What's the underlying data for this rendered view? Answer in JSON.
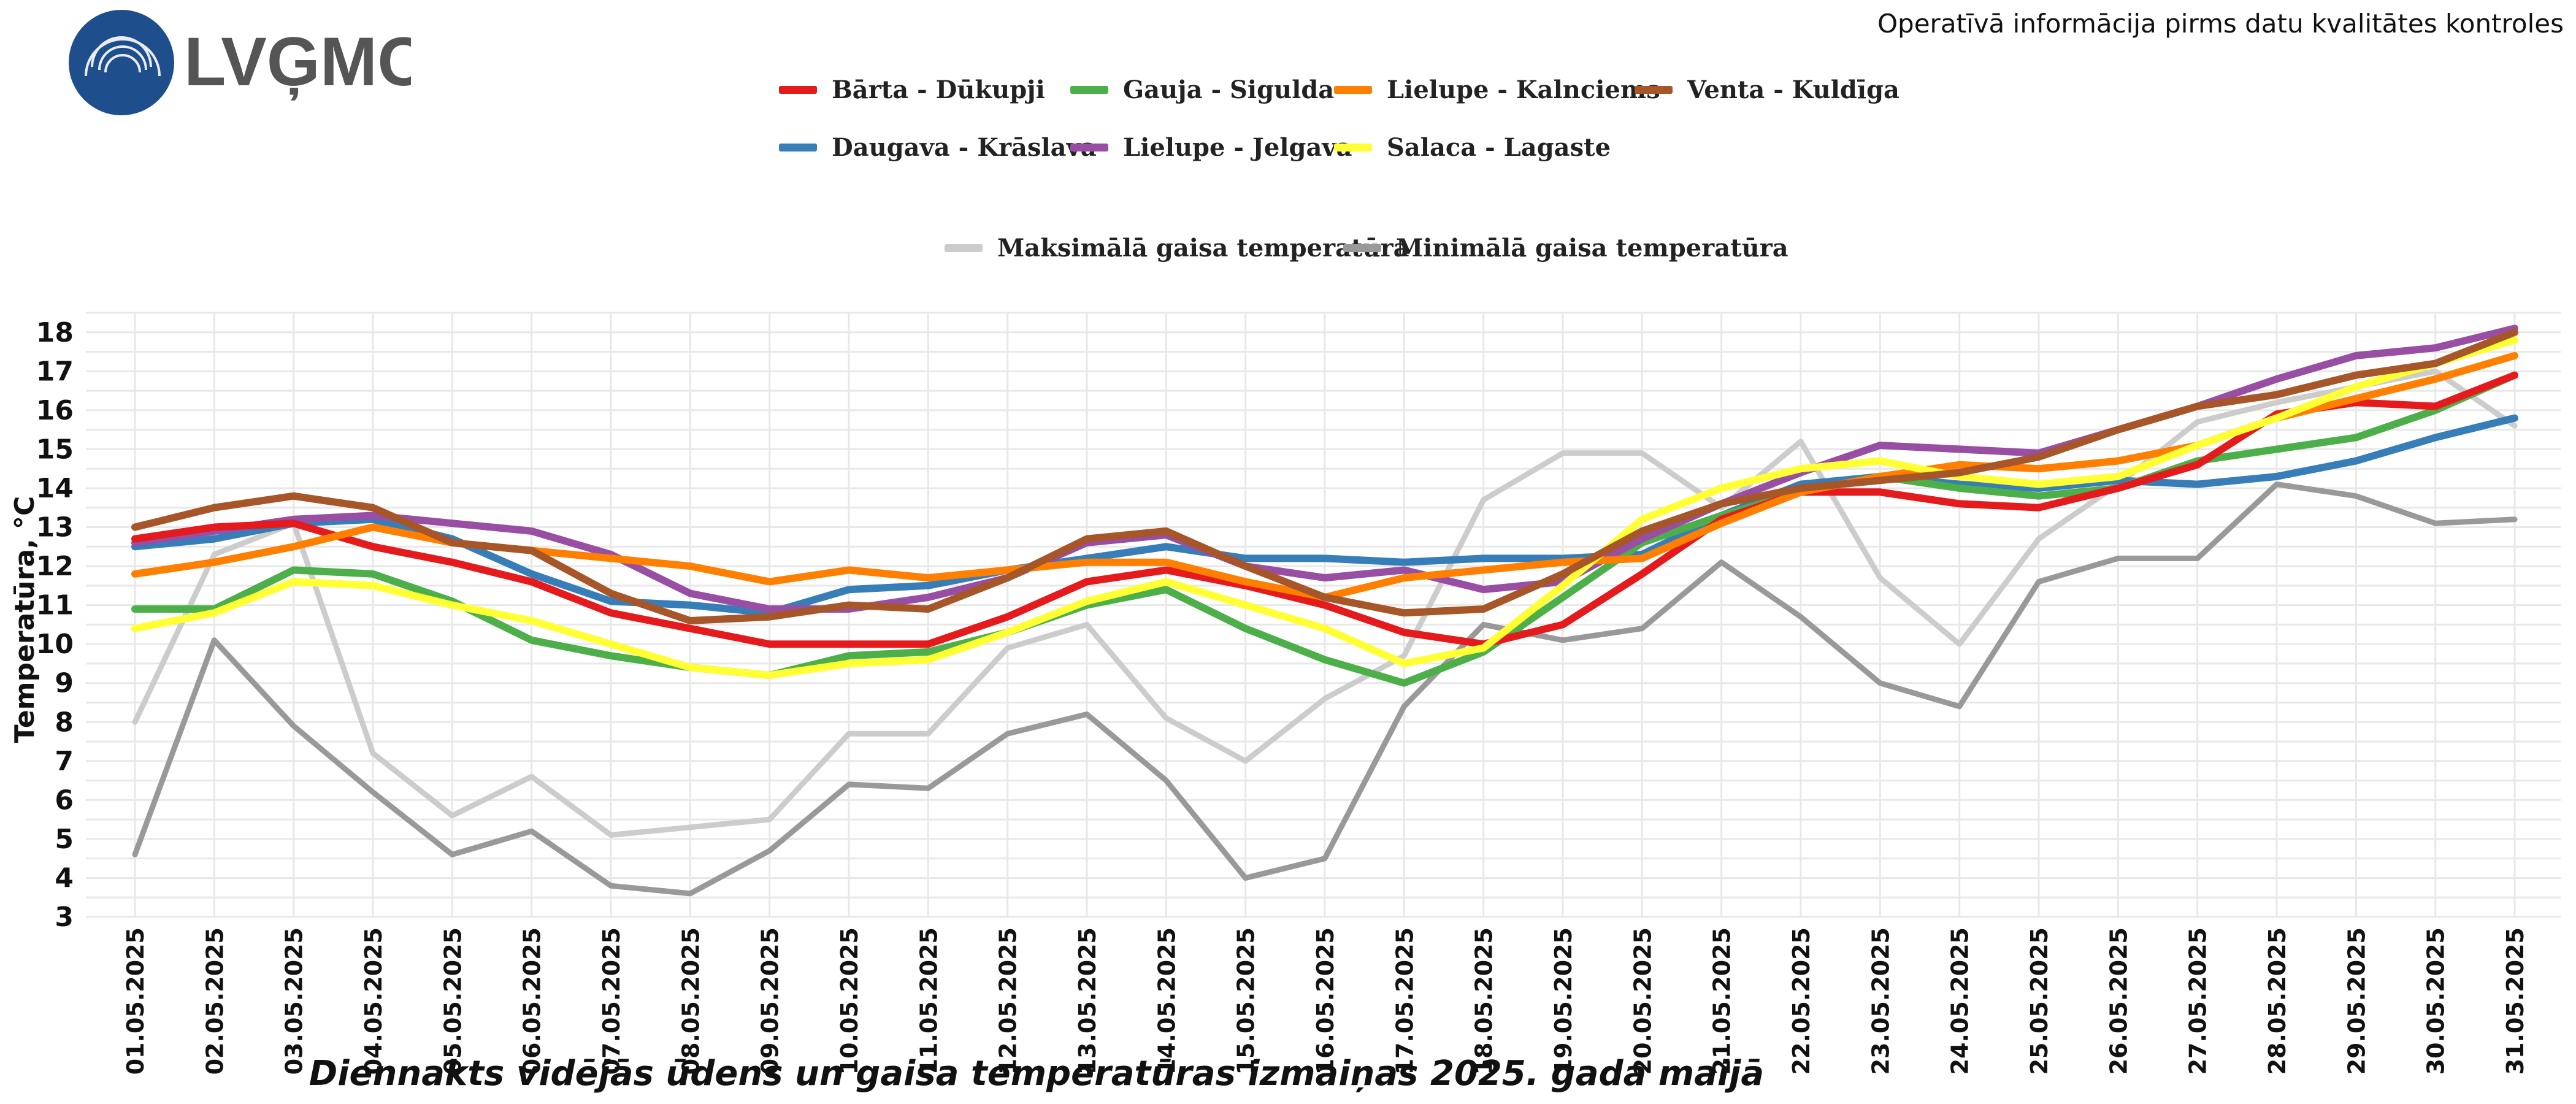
{
  "header": {
    "logo_text": "LVĢMC",
    "note": "Operatīvā informācija pirms datu kvalitātes kontroles"
  },
  "chart_data": {
    "type": "line",
    "title": "",
    "xlabel": "Diennakts vidējās ūdens un gaisa temperatūras izmaiņas 2025. gada maijā",
    "ylabel": "Temperatūra, °C",
    "ylim": [
      3,
      18.5
    ],
    "yticks": [
      3,
      4,
      5,
      6,
      7,
      8,
      9,
      10,
      11,
      12,
      13,
      14,
      15,
      16,
      17,
      18
    ],
    "grid": true,
    "legend_position": "top",
    "categories": [
      "01.05.2025",
      "02.05.2025",
      "03.05.2025",
      "04.05.2025",
      "05.05.2025",
      "06.05.2025",
      "07.05.2025",
      "08.05.2025",
      "09.05.2025",
      "10.05.2025",
      "11.05.2025",
      "12.05.2025",
      "13.05.2025",
      "14.05.2025",
      "15.05.2025",
      "16.05.2025",
      "17.05.2025",
      "18.05.2025",
      "19.05.2025",
      "20.05.2025",
      "21.05.2025",
      "22.05.2025",
      "23.05.2025",
      "24.05.2025",
      "25.05.2025",
      "26.05.2025",
      "27.05.2025",
      "28.05.2025",
      "29.05.2025",
      "30.05.2025",
      "31.05.2025"
    ],
    "series": [
      {
        "name": "Maksimālā gaisa temperatūra",
        "color": "#cccccc",
        "group": "air",
        "values": [
          8.0,
          12.3,
          13.1,
          7.2,
          5.6,
          6.6,
          5.1,
          5.3,
          5.5,
          7.7,
          7.7,
          9.9,
          10.5,
          8.1,
          7.0,
          8.6,
          9.7,
          13.7,
          14.9,
          14.9,
          13.5,
          15.2,
          11.7,
          10.0,
          12.7,
          14.1,
          15.7,
          16.2,
          16.6,
          17.0,
          15.6
        ]
      },
      {
        "name": "Minimālā gaisa temperatūra",
        "color": "#999999",
        "group": "air",
        "values": [
          4.6,
          10.1,
          7.9,
          6.2,
          4.6,
          5.2,
          3.8,
          3.6,
          4.7,
          6.4,
          6.3,
          7.7,
          8.2,
          6.5,
          4.0,
          4.5,
          8.4,
          10.5,
          10.1,
          10.4,
          12.1,
          10.7,
          9.0,
          8.4,
          11.6,
          12.2,
          12.2,
          14.1,
          13.8,
          13.1,
          13.2
        ]
      },
      {
        "name": "Daugava - Krāslava",
        "color": "#377eb8",
        "group": "water",
        "values": [
          12.5,
          12.7,
          13.1,
          13.2,
          12.7,
          11.8,
          11.1,
          11.0,
          10.8,
          11.4,
          11.5,
          11.9,
          12.2,
          12.5,
          12.2,
          12.2,
          12.1,
          12.2,
          12.2,
          12.3,
          13.3,
          14.1,
          14.3,
          14.1,
          14.0,
          14.2,
          14.1,
          14.3,
          14.7,
          15.3,
          15.8
        ]
      },
      {
        "name": "Gauja - Sigulda",
        "color": "#4daf4a",
        "group": "water",
        "values": [
          10.9,
          10.9,
          11.9,
          11.8,
          11.1,
          10.1,
          9.7,
          9.4,
          9.2,
          9.7,
          9.8,
          10.3,
          11.0,
          11.4,
          10.4,
          9.6,
          9.0,
          9.8,
          11.2,
          12.6,
          13.3,
          13.9,
          14.3,
          14.0,
          13.8,
          14.0,
          14.7,
          15.0,
          15.3,
          16.0,
          16.9
        ]
      },
      {
        "name": "Lielupe - Jelgava",
        "color": "#984ea3",
        "group": "water",
        "values": [
          12.6,
          12.9,
          13.2,
          13.3,
          13.1,
          12.9,
          12.3,
          11.3,
          10.9,
          10.9,
          11.2,
          11.7,
          12.6,
          12.8,
          12.0,
          11.7,
          11.9,
          11.4,
          11.6,
          12.7,
          13.6,
          14.4,
          15.1,
          15.0,
          14.9,
          15.5,
          16.1,
          16.8,
          17.4,
          17.6,
          18.1
        ]
      },
      {
        "name": "Bārta - Dūkupji",
        "color": "#e41a1c",
        "group": "water",
        "values": [
          12.7,
          13.0,
          13.1,
          12.5,
          12.1,
          11.6,
          10.8,
          10.4,
          10.0,
          10.0,
          10.0,
          10.7,
          11.6,
          11.9,
          11.5,
          11.0,
          10.3,
          10.0,
          10.5,
          11.8,
          13.2,
          13.9,
          13.9,
          13.6,
          13.5,
          14.0,
          14.6,
          15.9,
          16.2,
          16.1,
          16.9
        ]
      },
      {
        "name": "Lielupe - Kalnciems",
        "color": "#ff7f00",
        "group": "water",
        "values": [
          11.8,
          12.1,
          12.5,
          13.0,
          12.6,
          12.4,
          12.2,
          12.0,
          11.6,
          11.9,
          11.7,
          11.9,
          12.1,
          12.1,
          11.6,
          11.2,
          11.7,
          11.9,
          12.1,
          12.2,
          13.1,
          13.9,
          14.3,
          14.6,
          14.5,
          14.7,
          15.1,
          15.8,
          16.3,
          16.8,
          17.4
        ]
      },
      {
        "name": "Salaca - Lagaste",
        "color": "#ffff33",
        "group": "water",
        "values": [
          10.4,
          10.8,
          11.6,
          11.5,
          11.0,
          10.6,
          10.0,
          9.4,
          9.2,
          9.5,
          9.6,
          10.3,
          11.1,
          11.6,
          11.0,
          10.4,
          9.5,
          9.9,
          11.5,
          13.2,
          14.0,
          14.5,
          14.7,
          14.3,
          14.1,
          14.3,
          15.1,
          15.8,
          16.6,
          17.2,
          17.8
        ]
      },
      {
        "name": "Venta - Kuldīga",
        "color": "#a65628",
        "group": "water",
        "values": [
          13.0,
          13.5,
          13.8,
          13.5,
          12.6,
          12.4,
          11.3,
          10.6,
          10.7,
          11.0,
          10.9,
          11.7,
          12.7,
          12.9,
          12.0,
          11.2,
          10.8,
          10.9,
          11.8,
          12.9,
          13.6,
          14.0,
          14.2,
          14.4,
          14.8,
          15.5,
          16.1,
          16.4,
          16.9,
          17.2,
          18.0
        ]
      }
    ]
  },
  "legend": {
    "water_row1": [
      "Bārta - Dūkupji",
      "Gauja - Sigulda",
      "Lielupe - Kalnciems",
      "Venta - Kuldīga"
    ],
    "water_row2": [
      "Daugava - Krāslava",
      "Lielupe - Jelgava",
      "Salaca - Lagaste"
    ],
    "air_row": [
      "Maksimālā gaisa temperatūra",
      "Minimālā gaisa temperatūra"
    ]
  }
}
